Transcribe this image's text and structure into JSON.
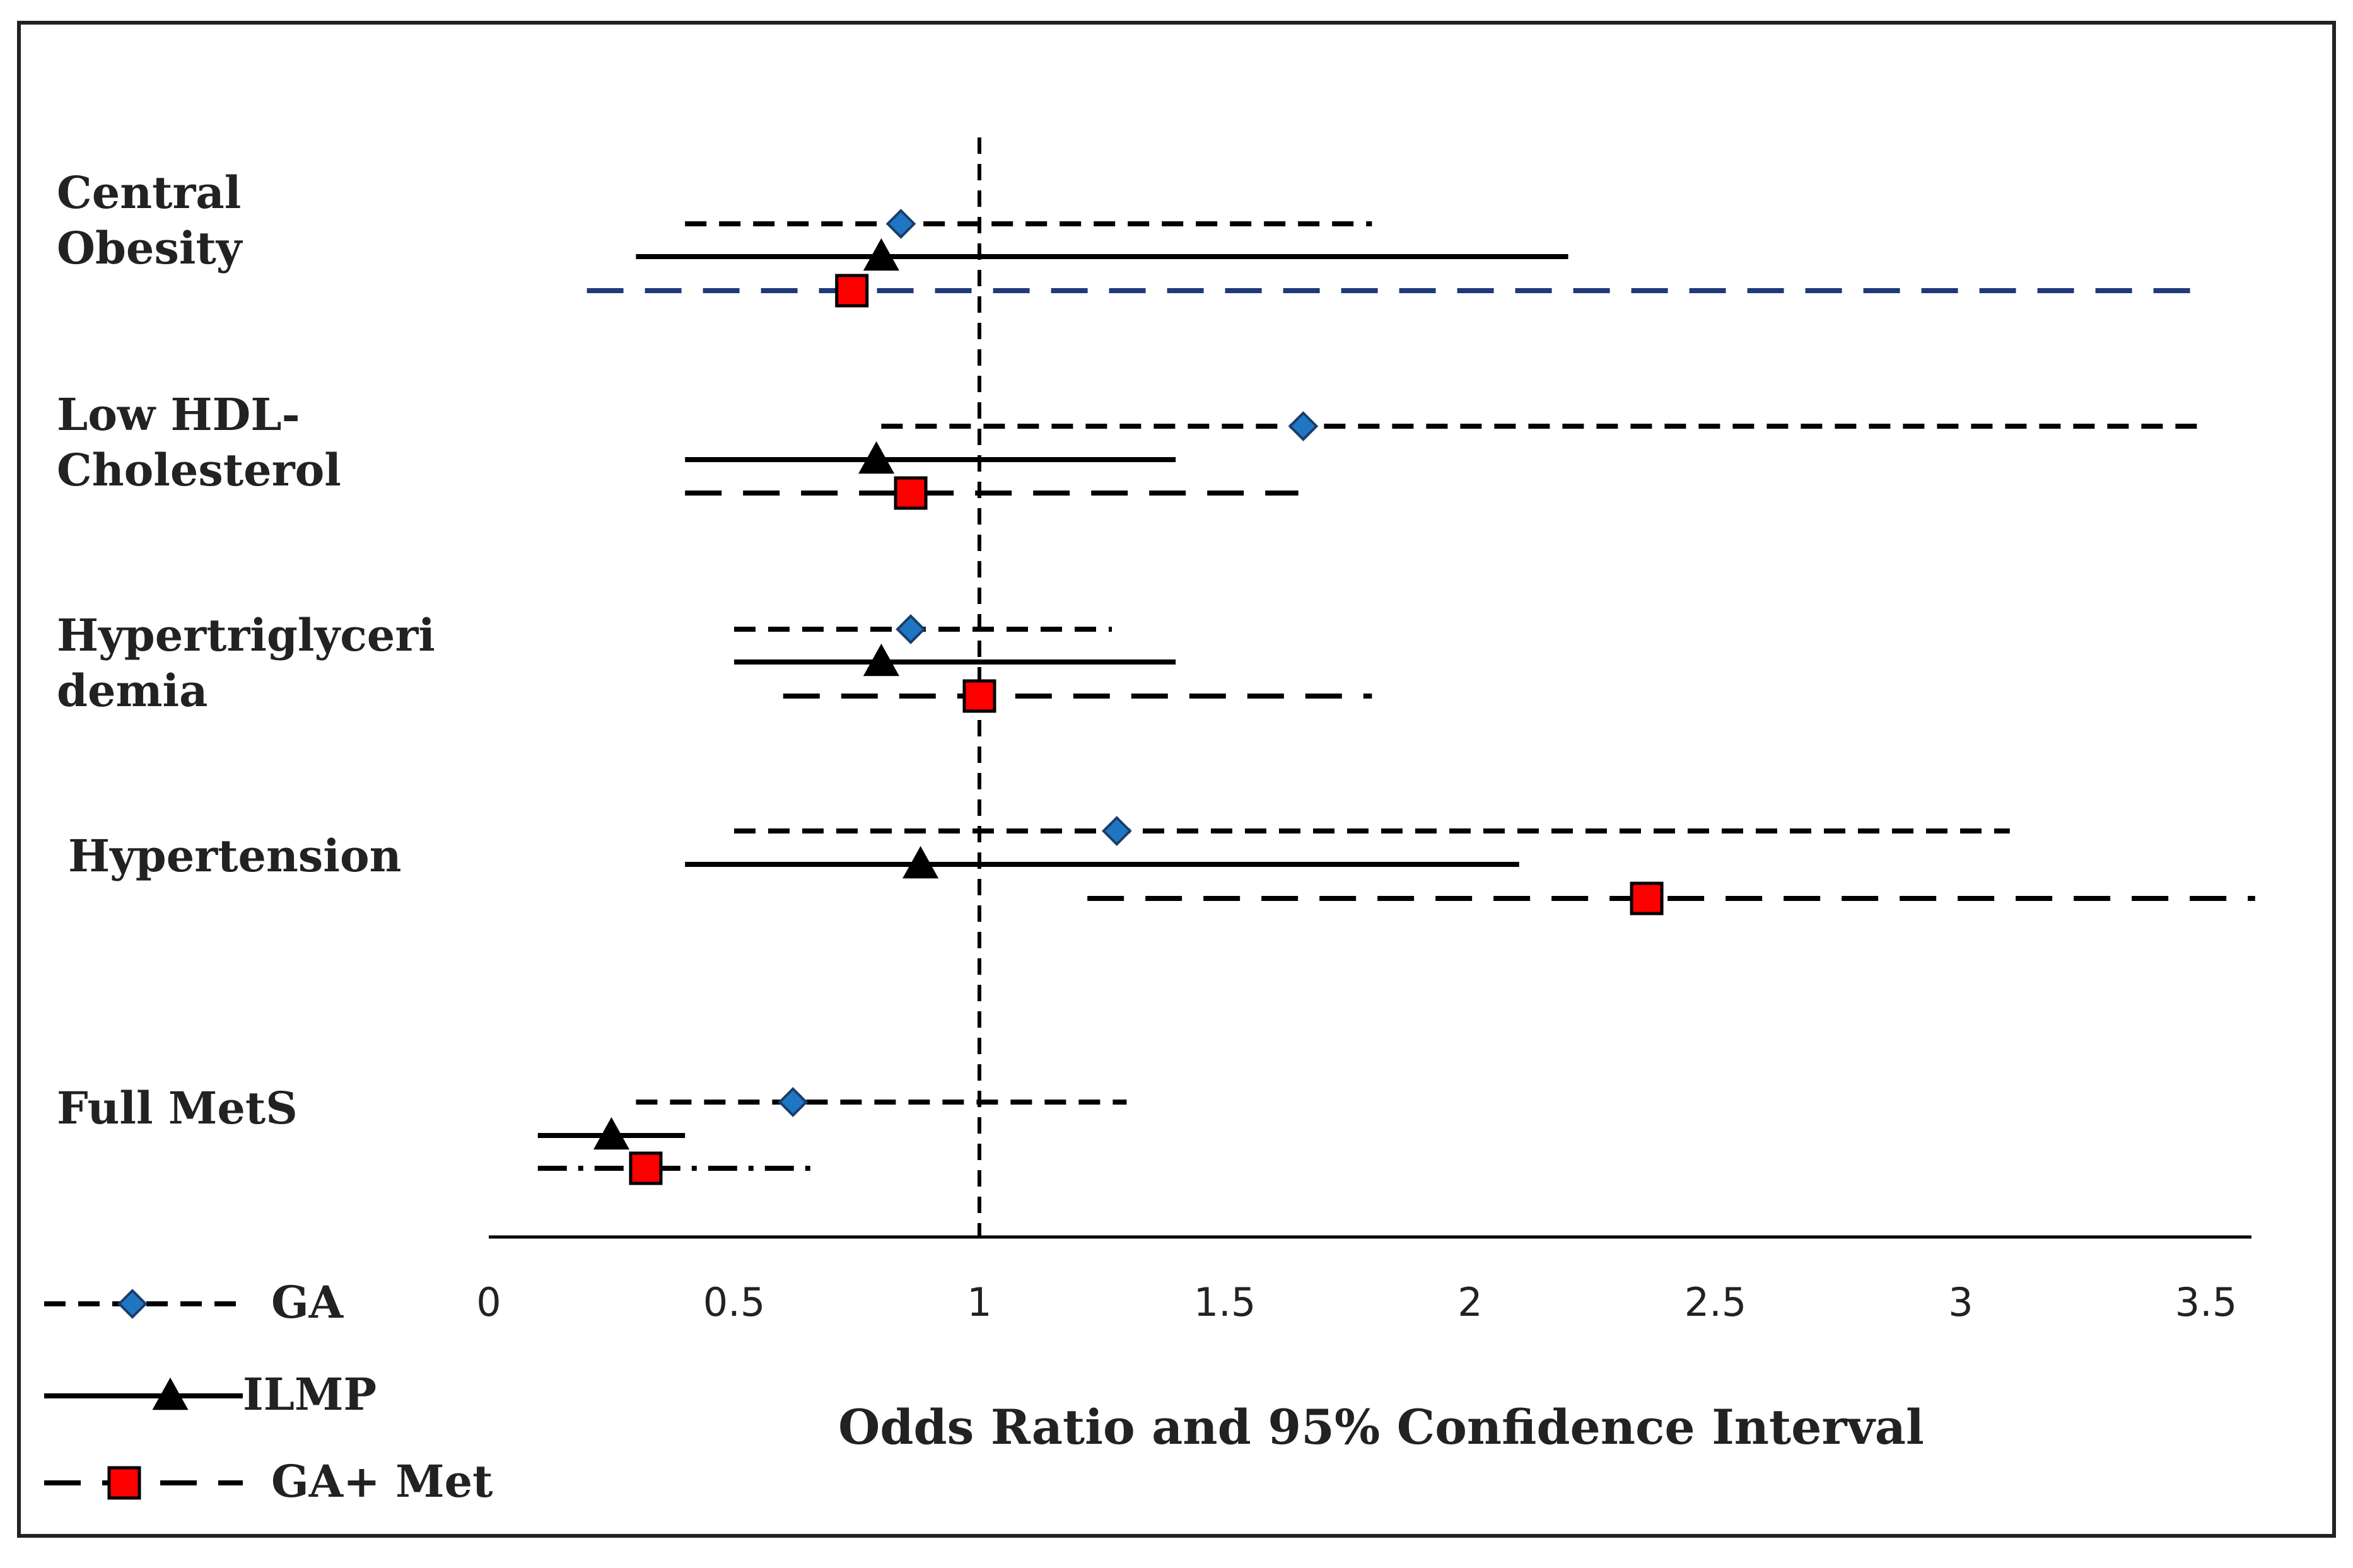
{
  "chart_data": {
    "type": "forest",
    "xlabel": "Odds Ratio and 95% Confidence Interval",
    "xlim": [
      0,
      3.6
    ],
    "xticks": [
      0,
      0.5,
      1,
      1.5,
      2,
      2.5,
      3,
      3.5
    ],
    "reference_line": 1,
    "categories": [
      [
        "Central",
        "Obesity"
      ],
      [
        "Low HDL-",
        "Cholesterol"
      ],
      [
        "Hypertriglyceri",
        "demia"
      ],
      [
        "Hypertension"
      ],
      [
        "Full MetS"
      ]
    ],
    "series": [
      {
        "name": "GA",
        "marker": "diamond",
        "color": "#1f77c4",
        "line_style": "short-dash",
        "or": [
          0.84,
          1.66,
          0.86,
          1.28,
          0.62
        ],
        "lo": [
          0.4,
          0.8,
          0.5,
          0.5,
          0.3
        ],
        "hi": [
          1.8,
          3.5,
          1.27,
          3.1,
          1.3
        ]
      },
      {
        "name": "ILMP",
        "marker": "triangle",
        "color": "#000000",
        "line_style": "solid",
        "or": [
          0.8,
          0.79,
          0.8,
          0.88,
          0.25
        ],
        "lo": [
          0.3,
          0.4,
          0.5,
          0.4,
          0.1
        ],
        "hi": [
          2.2,
          1.4,
          1.4,
          2.1,
          0.4
        ]
      },
      {
        "name": "GA+ Met",
        "marker": "square",
        "color": "#ff0000",
        "line_style": "long-dash",
        "or": [
          0.74,
          0.86,
          1.0,
          2.36,
          0.32
        ],
        "lo": [
          0.2,
          0.4,
          0.6,
          1.22,
          0.1
        ],
        "hi": [
          3.5,
          1.65,
          1.8,
          3.6,
          0.67
        ]
      }
    ],
    "first_row_line_color": "#1f3a7a",
    "last_row_line_style": "dash-dot"
  }
}
